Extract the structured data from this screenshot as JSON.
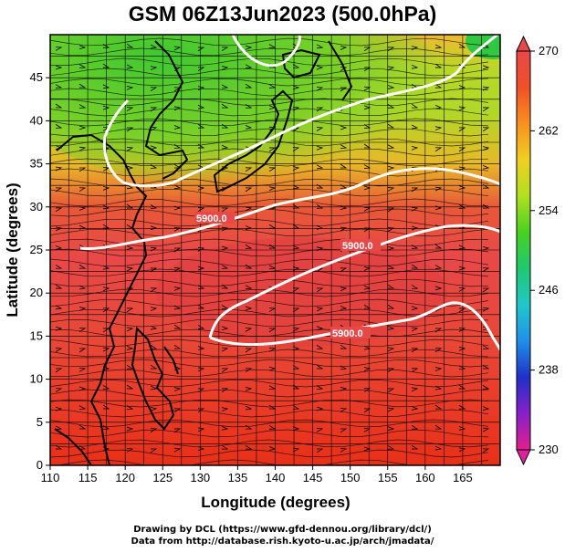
{
  "title": "GSM 06Z13Jun2023 (500.0hPa)",
  "x_axis": {
    "label": "Longitude (degrees)",
    "range": [
      110,
      170
    ],
    "ticks": [
      "110",
      "115",
      "120",
      "125",
      "130",
      "135",
      "140",
      "145",
      "150",
      "155",
      "160",
      "165"
    ]
  },
  "y_axis": {
    "label": "Latitude (degrees)",
    "range": [
      0,
      50
    ],
    "ticks": [
      "0",
      "5",
      "10",
      "15",
      "20",
      "25",
      "30",
      "35",
      "40",
      "45"
    ]
  },
  "colorbar": {
    "range": [
      230,
      270
    ],
    "labels": [
      "270",
      "262",
      "254",
      "246",
      "238",
      "230"
    ],
    "colors": [
      "#e0208c",
      "#8820c8",
      "#2030c8",
      "#2090e8",
      "#20c8c8",
      "#20c870",
      "#48d020",
      "#b0e020",
      "#f0d020",
      "#f89020",
      "#f05028",
      "#e84848"
    ]
  },
  "contours": [
    {
      "label": "5900.0"
    },
    {
      "label": "5900.0"
    },
    {
      "label": "5900.0"
    }
  ],
  "credits": {
    "line1": "Drawing by DCL (https://www.gfd-dennou.org/library/dcl/)",
    "line2": "Data from http://database.rish.kyoto-u.ac.jp/arch/jmadata/"
  }
}
